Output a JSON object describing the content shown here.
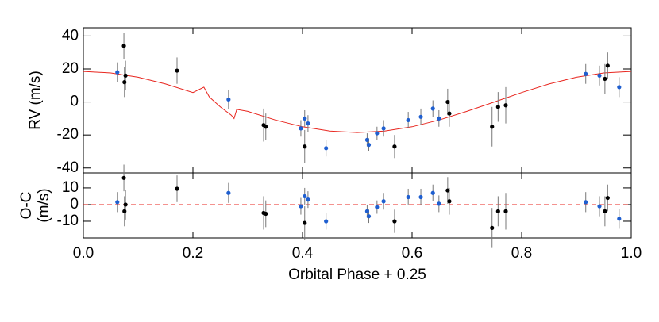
{
  "chart_data": [
    {
      "type": "scatter",
      "ylabel": [
        "RV (m/s)"
      ],
      "ylim": [
        -43,
        45
      ],
      "yticks": [
        -40,
        -20,
        0,
        20,
        40
      ],
      "xlim": [
        0,
        1
      ],
      "series": [
        {
          "mode": "line",
          "color": "#e8261f",
          "x": [
            0,
            0.05,
            0.1,
            0.15,
            0.2,
            0.22,
            0.23,
            0.25,
            0.27,
            0.275,
            0.28,
            0.3,
            0.35,
            0.4,
            0.45,
            0.5,
            0.55,
            0.6,
            0.65,
            0.7,
            0.75,
            0.8,
            0.85,
            0.9,
            0.95,
            1.0
          ],
          "values": [
            18.5,
            17.6,
            15,
            10.9,
            5.7,
            9,
            3,
            -3,
            -8,
            -10,
            -4.5,
            -5.7,
            -10.9,
            -15,
            -17.6,
            -18.5,
            -17.6,
            -15,
            -10.9,
            -5.7,
            0,
            5.7,
            10.9,
            15,
            17.6,
            18.5
          ]
        },
        {
          "mode": "points",
          "color": "#1f5fd0",
          "x": [
            0.062,
            0.265,
            0.397,
            0.404,
            0.41,
            0.443,
            0.518,
            0.521,
            0.536,
            0.548,
            0.593,
            0.616,
            0.638,
            0.649,
            0.917,
            0.942,
            0.978
          ],
          "values": [
            18,
            1.5,
            -16,
            -10,
            -13,
            -28,
            -23,
            -26,
            -19,
            -16,
            -11,
            -9,
            -4,
            -10,
            17,
            16,
            9
          ],
          "errors": [
            6,
            6,
            5,
            5,
            5,
            5,
            4,
            4,
            4,
            5,
            5,
            5,
            5,
            5,
            6,
            6,
            6
          ]
        },
        {
          "mode": "points",
          "color": "#000000",
          "x": [
            0.074,
            0.075,
            0.077,
            0.171,
            0.329,
            0.333,
            0.404,
            0.568,
            0.665,
            0.668,
            0.746,
            0.757,
            0.771,
            0.952,
            0.957
          ],
          "values": [
            34,
            12,
            16,
            19,
            -14,
            -15,
            -27,
            -27,
            0,
            -7,
            -15,
            -3,
            -2,
            14,
            22
          ],
          "errors": [
            8,
            9,
            9,
            8,
            10,
            8,
            10,
            7,
            8,
            8,
            12,
            9,
            11,
            9,
            8
          ]
        }
      ]
    },
    {
      "type": "scatter",
      "ylabel": [
        "O-C",
        "(m/s)"
      ],
      "xlabel": "Orbital Phase + 0.25",
      "ylim": [
        -20,
        19
      ],
      "yticks": [
        -10,
        0,
        10
      ],
      "xlim": [
        0,
        1
      ],
      "xticks": [
        {
          "value": 0,
          "label": "0.0"
        },
        {
          "value": 0.2,
          "label": "0.2"
        },
        {
          "value": 0.4,
          "label": "0.4"
        },
        {
          "value": 0.6,
          "label": "0.6"
        },
        {
          "value": 0.8,
          "label": "0.8"
        },
        {
          "value": 1,
          "label": "1.0"
        }
      ],
      "reference_line": 0,
      "reference_color": "#e8261f",
      "series": [
        {
          "mode": "points",
          "color": "#1f5fd0",
          "x": [
            0.062,
            0.265,
            0.397,
            0.404,
            0.41,
            0.443,
            0.518,
            0.521,
            0.536,
            0.548,
            0.593,
            0.616,
            0.638,
            0.649,
            0.917,
            0.942,
            0.978
          ],
          "values": [
            1.5,
            7,
            -1,
            5,
            3,
            -10,
            -4,
            -7,
            -1.5,
            2,
            4.5,
            4.5,
            7,
            0.5,
            1.5,
            -1,
            -8.5
          ],
          "errors": [
            6,
            6,
            5,
            5,
            5,
            5,
            4,
            4,
            4,
            5,
            5,
            5,
            5,
            5,
            6,
            6,
            6
          ]
        },
        {
          "mode": "points",
          "color": "#000000",
          "x": [
            0.074,
            0.075,
            0.077,
            0.171,
            0.329,
            0.333,
            0.404,
            0.568,
            0.665,
            0.668,
            0.746,
            0.757,
            0.771,
            0.952,
            0.957
          ],
          "values": [
            16,
            -4,
            0,
            9.5,
            -5,
            -5.5,
            -11,
            -10,
            8.5,
            2,
            -14,
            -4,
            -4,
            -4,
            4
          ],
          "errors": [
            8,
            9,
            9,
            8,
            10,
            8,
            10,
            7,
            8,
            8,
            12,
            9,
            11,
            9,
            8
          ]
        }
      ]
    }
  ]
}
